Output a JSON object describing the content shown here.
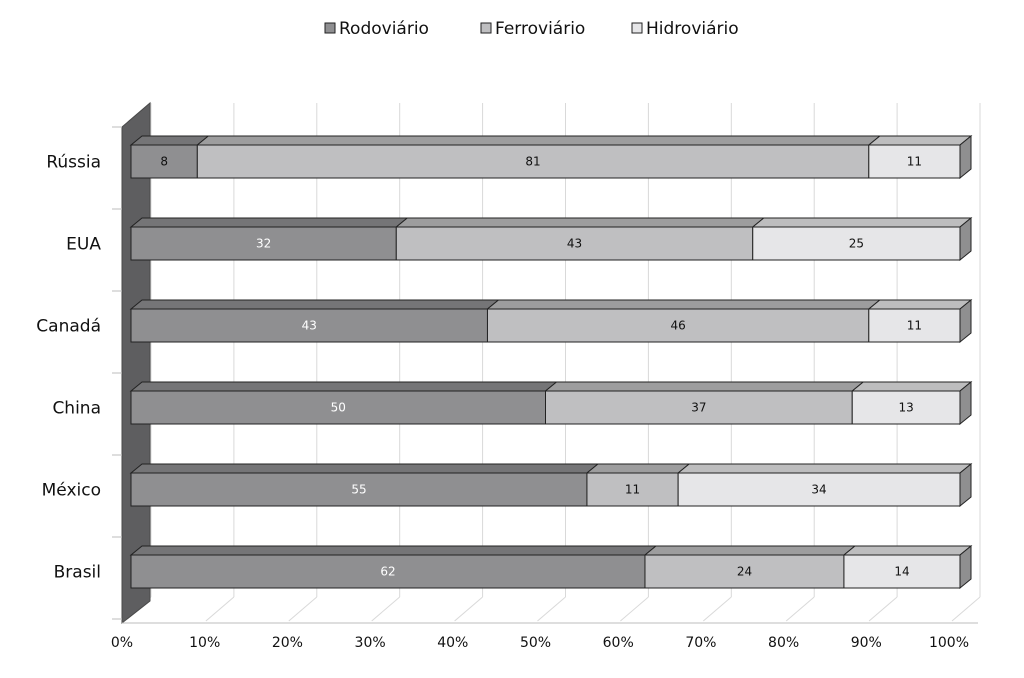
{
  "chart_data": {
    "type": "bar",
    "orientation": "horizontal",
    "stacked": "percent",
    "three_d": true,
    "categories": [
      "Rússia",
      "EUA",
      "Canadá",
      "China",
      "México",
      "Brasil"
    ],
    "series": [
      {
        "name": "Rodoviário",
        "values": [
          8,
          32,
          43,
          50,
          55,
          62
        ],
        "color": "#8f8f91"
      },
      {
        "name": "Ferroviário",
        "values": [
          81,
          43,
          46,
          37,
          11,
          24
        ],
        "color": "#bfbfc1"
      },
      {
        "name": "Hidroviário",
        "values": [
          11,
          25,
          11,
          13,
          34,
          14
        ],
        "color": "#e6e6e8"
      }
    ],
    "x_ticks": [
      "0%",
      "10%",
      "20%",
      "30%",
      "40%",
      "50%",
      "60%",
      "70%",
      "80%",
      "90%",
      "100%"
    ],
    "xlim": [
      0,
      100
    ],
    "legend_position": "top",
    "grid": true,
    "title": "",
    "xlabel": "",
    "ylabel": ""
  }
}
